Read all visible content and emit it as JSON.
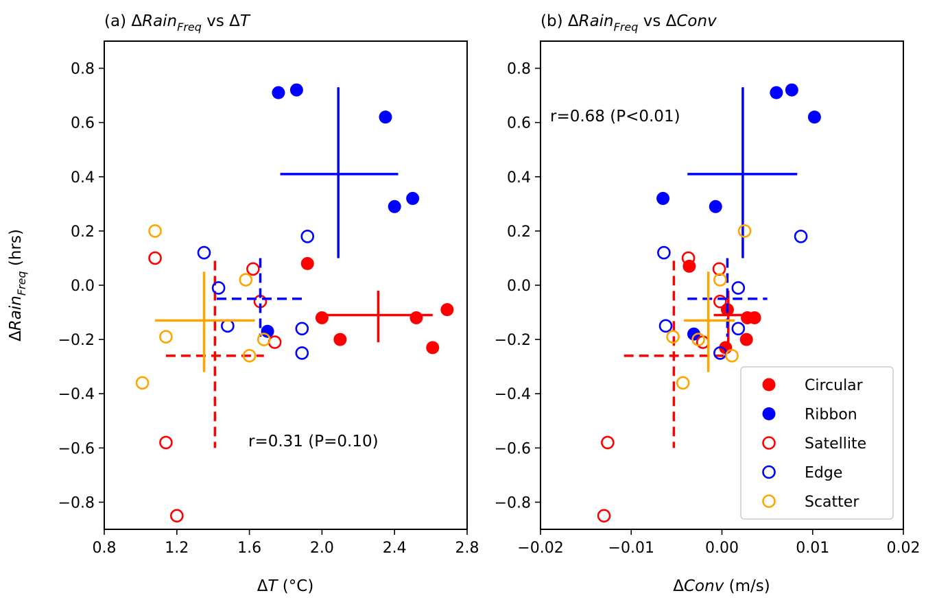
{
  "chart_data": [
    {
      "type": "scatter",
      "panel": "a",
      "title_prefix": "(a) Δ",
      "title_main": "Rain",
      "title_sub": "Freq",
      "title_suffix": " vs Δ",
      "title_var": "T",
      "xlabel_prefix": "Δ",
      "xlabel_var": "T",
      "xlabel_unit": " (°C)",
      "ylabel_prefix": "Δ",
      "ylabel_var": "Rain",
      "ylabel_sub": "Freq",
      "ylabel_unit": " (hrs)",
      "xlim": [
        0.8,
        2.8
      ],
      "ylim": [
        -0.9,
        0.9
      ],
      "xticks": [
        0.8,
        1.2,
        1.6,
        2.0,
        2.4,
        2.8
      ],
      "xtick_labels": [
        "0.8",
        "1.2",
        "1.6",
        "2.0",
        "2.4",
        "2.8"
      ],
      "yticks": [
        0.8,
        0.6,
        0.4,
        0.2,
        0.0,
        -0.2,
        -0.4,
        -0.6,
        -0.8
      ],
      "ytick_labels": [
        "0.8",
        "0.6",
        "0.4",
        "0.2",
        "0.0",
        "−0.2",
        "−0.4",
        "−0.6",
        "−0.8"
      ],
      "annotation": "r=0.31 (P=0.10)",
      "annotation_pos": "bottom-right",
      "grid": false,
      "series": [
        {
          "name": "Circular",
          "color": "#ff0000",
          "filled": true,
          "points": [
            [
              2.0,
              -0.12
            ],
            [
              2.1,
              -0.2
            ],
            [
              1.92,
              0.08
            ],
            [
              2.52,
              -0.12
            ],
            [
              2.61,
              -0.23
            ],
            [
              2.69,
              -0.09
            ]
          ],
          "cross": {
            "x": 2.31,
            "y": -0.11,
            "xmin": 2.0,
            "xmax": 2.61,
            "ymin": -0.21,
            "ymax": -0.02,
            "dashed": false
          }
        },
        {
          "name": "Ribbon",
          "color": "#0000ff",
          "filled": true,
          "points": [
            [
              1.76,
              0.71
            ],
            [
              1.86,
              0.72
            ],
            [
              2.35,
              0.62
            ],
            [
              2.4,
              0.29
            ],
            [
              2.5,
              0.32
            ],
            [
              1.7,
              -0.17
            ]
          ],
          "cross": {
            "x": 2.09,
            "y": 0.41,
            "xmin": 1.77,
            "xmax": 2.42,
            "ymin": 0.1,
            "ymax": 0.73,
            "dashed": false
          }
        },
        {
          "name": "Satellite",
          "color": "#ff0000",
          "filled": false,
          "points": [
            [
              1.08,
              0.1
            ],
            [
              1.62,
              0.06
            ],
            [
              1.66,
              -0.06
            ],
            [
              1.74,
              -0.21
            ],
            [
              1.14,
              -0.58
            ],
            [
              1.2,
              -0.85
            ]
          ],
          "cross": {
            "x": 1.41,
            "y": -0.26,
            "xmin": 1.14,
            "xmax": 1.68,
            "ymin": -0.6,
            "ymax": 0.09,
            "dashed": true
          }
        },
        {
          "name": "Edge",
          "color": "#0000ff",
          "filled": false,
          "points": [
            [
              1.35,
              0.12
            ],
            [
              1.43,
              -0.01
            ],
            [
              1.48,
              -0.15
            ],
            [
              1.92,
              0.18
            ],
            [
              1.89,
              -0.16
            ],
            [
              1.89,
              -0.25
            ]
          ],
          "cross": {
            "x": 1.66,
            "y": -0.05,
            "xmin": 1.42,
            "xmax": 1.9,
            "ymin": -0.19,
            "ymax": 0.1,
            "dashed": true
          }
        },
        {
          "name": "Scatter",
          "color": "#ffa500",
          "filled": false,
          "points": [
            [
              1.08,
              0.2
            ],
            [
              1.58,
              0.02
            ],
            [
              1.14,
              -0.19
            ],
            [
              1.68,
              -0.2
            ],
            [
              1.6,
              -0.26
            ],
            [
              1.01,
              -0.36
            ]
          ],
          "cross": {
            "x": 1.35,
            "y": -0.13,
            "xmin": 1.08,
            "xmax": 1.63,
            "ymin": -0.32,
            "ymax": 0.05,
            "dashed": false
          }
        }
      ]
    },
    {
      "type": "scatter",
      "panel": "b",
      "title_prefix": "(b) Δ",
      "title_main": "Rain",
      "title_sub": "Freq",
      "title_suffix": " vs Δ",
      "title_var": "Conv",
      "xlabel_prefix": "Δ",
      "xlabel_var": "Conv",
      "xlabel_unit": " (m/s)",
      "xlim": [
        -0.02,
        0.02
      ],
      "ylim": [
        -0.9,
        0.9
      ],
      "xticks": [
        -0.02,
        -0.01,
        0.0,
        0.01,
        0.02
      ],
      "xtick_labels": [
        "−0.02",
        "−0.01",
        "0.00",
        "0.01",
        "0.02"
      ],
      "yticks": [
        0.8,
        0.6,
        0.4,
        0.2,
        0.0,
        -0.2,
        -0.4,
        -0.6,
        -0.8
      ],
      "ytick_labels": [
        "0.8",
        "0.6",
        "0.4",
        "0.2",
        "0.0",
        "−0.2",
        "−0.4",
        "−0.6",
        "−0.8"
      ],
      "annotation": "r=0.68 (P<0.01)",
      "annotation_pos": "top-left",
      "grid": false,
      "legend_position": "lower-right",
      "series": [
        {
          "name": "Circular",
          "color": "#ff0000",
          "filled": true,
          "points": [
            [
              -0.0036,
              0.07
            ],
            [
              0.0006,
              -0.09
            ],
            [
              0.0028,
              -0.12
            ],
            [
              0.0036,
              -0.12
            ],
            [
              0.0027,
              -0.2
            ],
            [
              0.0004,
              -0.23
            ]
          ],
          "cross": {
            "x": 0.0007,
            "y": -0.11,
            "xmin": -0.0009,
            "xmax": 0.0036,
            "ymin": -0.21,
            "ymax": -0.02,
            "dashed": false
          }
        },
        {
          "name": "Ribbon",
          "color": "#0000ff",
          "filled": true,
          "points": [
            [
              0.006,
              0.71
            ],
            [
              0.0077,
              0.72
            ],
            [
              0.0102,
              0.62
            ],
            [
              -0.0065,
              0.32
            ],
            [
              -0.0007,
              0.29
            ],
            [
              -0.0031,
              -0.18
            ]
          ],
          "cross": {
            "x": 0.0023,
            "y": 0.41,
            "xmin": -0.0038,
            "xmax": 0.0083,
            "ymin": 0.1,
            "ymax": 0.73,
            "dashed": false
          }
        },
        {
          "name": "Satellite",
          "color": "#ff0000",
          "filled": false,
          "points": [
            [
              -0.0037,
              0.1
            ],
            [
              -0.0003,
              0.06
            ],
            [
              -0.0002,
              -0.06
            ],
            [
              -0.0021,
              -0.21
            ],
            [
              -0.0126,
              -0.58
            ],
            [
              -0.013,
              -0.85
            ]
          ],
          "cross": {
            "x": -0.0053,
            "y": -0.26,
            "xmin": -0.0108,
            "xmax": 0.0002,
            "ymin": -0.6,
            "ymax": 0.09,
            "dashed": true
          }
        },
        {
          "name": "Edge",
          "color": "#0000ff",
          "filled": false,
          "points": [
            [
              -0.0064,
              0.12
            ],
            [
              0.0018,
              -0.01
            ],
            [
              -0.0062,
              -0.15
            ],
            [
              0.0087,
              0.18
            ],
            [
              0.0018,
              -0.16
            ],
            [
              -0.0002,
              -0.25
            ]
          ],
          "cross": {
            "x": 0.0006,
            "y": -0.05,
            "xmin": -0.0038,
            "xmax": 0.005,
            "ymin": -0.19,
            "ymax": 0.1,
            "dashed": true
          }
        },
        {
          "name": "Scatter",
          "color": "#ffa500",
          "filled": false,
          "points": [
            [
              0.0025,
              0.2
            ],
            [
              -0.0002,
              0.02
            ],
            [
              -0.0054,
              -0.19
            ],
            [
              -0.0026,
              -0.2
            ],
            [
              0.0011,
              -0.26
            ],
            [
              -0.0043,
              -0.36
            ]
          ],
          "cross": {
            "x": -0.0015,
            "y": -0.13,
            "xmin": -0.0042,
            "xmax": 0.0014,
            "ymin": -0.32,
            "ymax": 0.05,
            "dashed": false
          }
        }
      ]
    }
  ],
  "legend": {
    "items": [
      {
        "label": "Circular",
        "color": "#ff0000",
        "filled": true
      },
      {
        "label": "Ribbon",
        "color": "#0000ff",
        "filled": true
      },
      {
        "label": "Satellite",
        "color": "#ff0000",
        "filled": false
      },
      {
        "label": "Edge",
        "color": "#0000ff",
        "filled": false
      },
      {
        "label": "Scatter",
        "color": "#ffa500",
        "filled": false
      }
    ]
  }
}
